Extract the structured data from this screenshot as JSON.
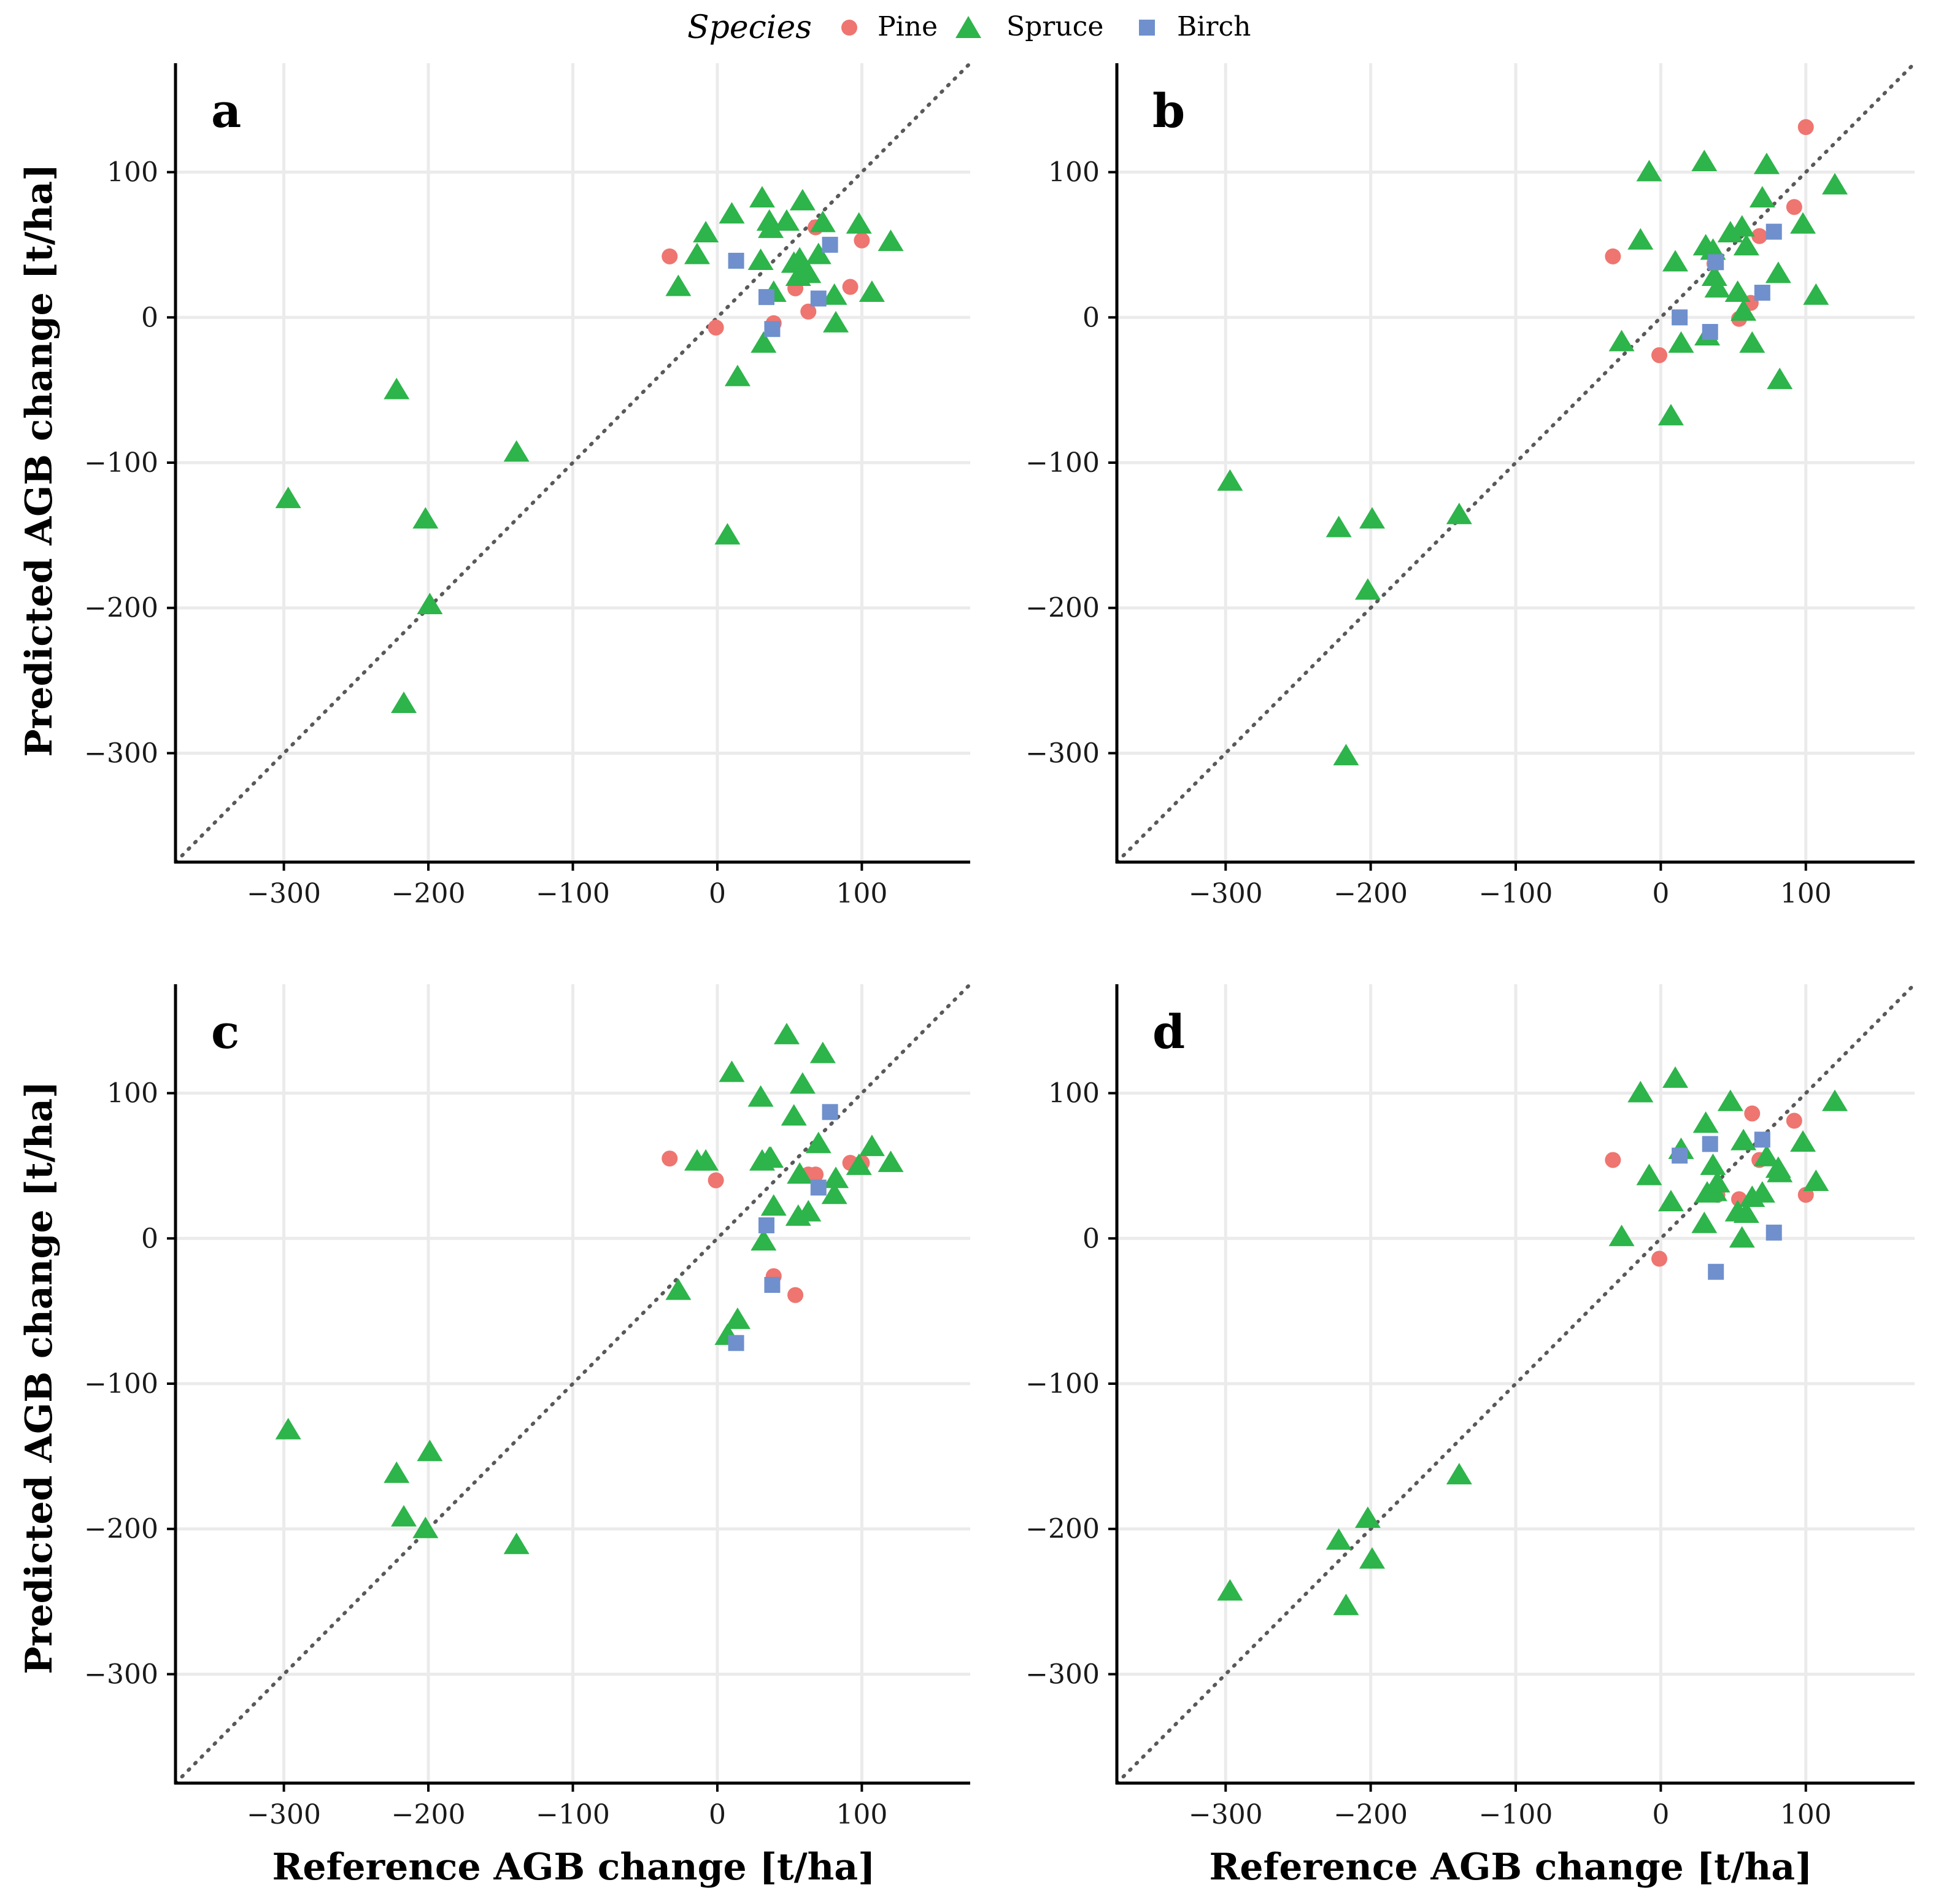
{
  "figure": {
    "legend_title": "Species",
    "legend_position": "top-center",
    "x_axis_title": "Reference AGB change [t/ha]",
    "y_axis_title": "Predicted AGB change [t/ha]"
  },
  "colors": {
    "Pine": "#ee7570",
    "Spruce": "#2db44a",
    "Birch": "#6f90cd",
    "grid": "#ebebeb",
    "axis": "#000000",
    "identity_line": "#595959"
  },
  "chart_data": {
    "type": "scatter",
    "layout": "2x2",
    "shared_axes": {
      "xlabel": "Reference AGB change [t/ha]",
      "ylabel": "Predicted AGB change [t/ha]",
      "xlim": [
        -375,
        175
      ],
      "ylim": [
        -375,
        175
      ],
      "x_ticks": [
        -300,
        -200,
        -100,
        0,
        100
      ],
      "y_ticks": [
        -300,
        -200,
        -100,
        0,
        100
      ],
      "x_tick_labels": [
        "−300",
        "−200",
        "−100",
        "0",
        "100"
      ],
      "y_tick_labels": [
        "−300",
        "−200",
        "−100",
        "0",
        "100"
      ],
      "grid": true,
      "identity_line": true
    },
    "legend": {
      "title": "Species",
      "entries": [
        {
          "name": "Pine",
          "marker": "circle"
        },
        {
          "name": "Spruce",
          "marker": "triangle"
        },
        {
          "name": "Birch",
          "marker": "square"
        }
      ]
    },
    "panels": [
      {
        "label": "a",
        "series": [
          {
            "name": "Pine",
            "points": [
              [
                -33,
                42
              ],
              [
                -1,
                -7
              ],
              [
                39,
                -4
              ],
              [
                54,
                20
              ],
              [
                63,
                4
              ],
              [
                68,
                62
              ],
              [
                92,
                21
              ],
              [
                100,
                53
              ]
            ]
          },
          {
            "name": "Spruce",
            "points": [
              [
                -297,
                -125
              ],
              [
                -222,
                -50
              ],
              [
                -217,
                -266
              ],
              [
                -202,
                -139
              ],
              [
                -199,
                -198
              ],
              [
                -139,
                -93
              ],
              [
                -27,
                21
              ],
              [
                -14,
                43
              ],
              [
                -8,
                58
              ],
              [
                7,
                -150
              ],
              [
                10,
                71
              ],
              [
                14,
                -41
              ],
              [
                30,
                39
              ],
              [
                31,
                82
              ],
              [
                32,
                -18
              ],
              [
                36,
                66
              ],
              [
                37,
                61
              ],
              [
                39,
                17
              ],
              [
                48,
                66
              ],
              [
                53,
                37
              ],
              [
                56,
                28
              ],
              [
                57,
                40
              ],
              [
                59,
                80
              ],
              [
                63,
                30
              ],
              [
                70,
                43
              ],
              [
                73,
                65
              ],
              [
                81,
                15
              ],
              [
                82,
                -4
              ],
              [
                98,
                64
              ],
              [
                107,
                17
              ],
              [
                120,
                52
              ]
            ]
          },
          {
            "name": "Birch",
            "points": [
              [
                13,
                39
              ],
              [
                34,
                14
              ],
              [
                38,
                -8
              ],
              [
                70,
                13
              ],
              [
                78,
                50
              ]
            ]
          }
        ]
      },
      {
        "label": "b",
        "series": [
          {
            "name": "Pine",
            "points": [
              [
                -33,
                42
              ],
              [
                -1,
                -26
              ],
              [
                37,
                37
              ],
              [
                54,
                -1
              ],
              [
                62,
                10
              ],
              [
                68,
                56
              ],
              [
                92,
                76
              ],
              [
                100,
                131
              ]
            ]
          },
          {
            "name": "Spruce",
            "points": [
              [
                -297,
                -113
              ],
              [
                -222,
                -145
              ],
              [
                -217,
                -302
              ],
              [
                -202,
                -188
              ],
              [
                -199,
                -139
              ],
              [
                -139,
                -136
              ],
              [
                -27,
                -17
              ],
              [
                -14,
                53
              ],
              [
                -8,
                100
              ],
              [
                7,
                -68
              ],
              [
                10,
                38
              ],
              [
                14,
                -18
              ],
              [
                30,
                107
              ],
              [
                31,
                49
              ],
              [
                32,
                -13
              ],
              [
                36,
                46
              ],
              [
                37,
                28
              ],
              [
                39,
                20
              ],
              [
                48,
                58
              ],
              [
                53,
                17
              ],
              [
                56,
                62
              ],
              [
                57,
                4
              ],
              [
                59,
                49
              ],
              [
                63,
                -18
              ],
              [
                70,
                82
              ],
              [
                73,
                105
              ],
              [
                81,
                30
              ],
              [
                82,
                -43
              ],
              [
                98,
                64
              ],
              [
                107,
                15
              ],
              [
                120,
                91
              ]
            ]
          },
          {
            "name": "Birch",
            "points": [
              [
                13,
                0
              ],
              [
                34,
                -10
              ],
              [
                38,
                38
              ],
              [
                70,
                17
              ],
              [
                78,
                59
              ]
            ]
          }
        ]
      },
      {
        "label": "c",
        "series": [
          {
            "name": "Pine",
            "points": [
              [
                -33,
                55
              ],
              [
                -1,
                40
              ],
              [
                39,
                -26
              ],
              [
                54,
                -39
              ],
              [
                63,
                44
              ],
              [
                68,
                44
              ],
              [
                92,
                52
              ],
              [
                100,
                52
              ]
            ]
          },
          {
            "name": "Spruce",
            "points": [
              [
                -297,
                -132
              ],
              [
                -222,
                -162
              ],
              [
                -217,
                -192
              ],
              [
                -202,
                -200
              ],
              [
                -199,
                -147
              ],
              [
                -139,
                -211
              ],
              [
                -27,
                -36
              ],
              [
                -14,
                53
              ],
              [
                -8,
                53
              ],
              [
                7,
                -67
              ],
              [
                10,
                114
              ],
              [
                14,
                -56
              ],
              [
                30,
                97
              ],
              [
                31,
                53
              ],
              [
                32,
                -2
              ],
              [
                36,
                55
              ],
              [
                37,
                55
              ],
              [
                39,
                22
              ],
              [
                48,
                140
              ],
              [
                53,
                84
              ],
              [
                56,
                15
              ],
              [
                57,
                44
              ],
              [
                59,
                106
              ],
              [
                63,
                18
              ],
              [
                70,
                65
              ],
              [
                73,
                127
              ],
              [
                81,
                30
              ],
              [
                82,
                41
              ],
              [
                98,
                50
              ],
              [
                107,
                63
              ],
              [
                120,
                52
              ]
            ]
          },
          {
            "name": "Birch",
            "points": [
              [
                13,
                -72
              ],
              [
                34,
                9
              ],
              [
                38,
                -32
              ],
              [
                70,
                35
              ],
              [
                78,
                87
              ]
            ]
          }
        ]
      },
      {
        "label": "d",
        "series": [
          {
            "name": "Pine",
            "points": [
              [
                -33,
                54
              ],
              [
                -1,
                -14
              ],
              [
                39,
                30
              ],
              [
                54,
                27
              ],
              [
                63,
                86
              ],
              [
                68,
                54
              ],
              [
                92,
                81
              ],
              [
                100,
                30
              ]
            ]
          },
          {
            "name": "Spruce",
            "points": [
              [
                -297,
                -243
              ],
              [
                -222,
                -208
              ],
              [
                -217,
                -253
              ],
              [
                -202,
                -193
              ],
              [
                -199,
                -221
              ],
              [
                -139,
                -163
              ],
              [
                -27,
                1
              ],
              [
                -14,
                100
              ],
              [
                -8,
                43
              ],
              [
                7,
                25
              ],
              [
                10,
                110
              ],
              [
                14,
                61
              ],
              [
                30,
                10
              ],
              [
                31,
                79
              ],
              [
                32,
                31
              ],
              [
                36,
                50
              ],
              [
                37,
                32
              ],
              [
                39,
                38
              ],
              [
                48,
                94
              ],
              [
                53,
                18
              ],
              [
                56,
                0
              ],
              [
                57,
                67
              ],
              [
                59,
                17
              ],
              [
                63,
                28
              ],
              [
                70,
                31
              ],
              [
                73,
                56
              ],
              [
                81,
                48
              ],
              [
                82,
                45
              ],
              [
                98,
                66
              ],
              [
                107,
                39
              ],
              [
                120,
                94
              ]
            ]
          },
          {
            "name": "Birch",
            "points": [
              [
                13,
                57
              ],
              [
                34,
                65
              ],
              [
                38,
                -23
              ],
              [
                70,
                68
              ],
              [
                78,
                4
              ]
            ]
          }
        ]
      }
    ]
  }
}
